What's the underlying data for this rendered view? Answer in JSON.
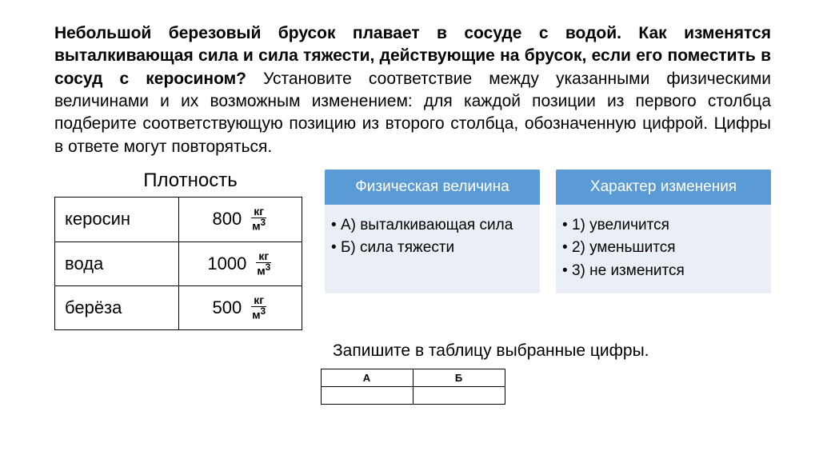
{
  "problem": {
    "bold_part": "Небольшой березовый брусок плавает в сосуде с водой. Как изменятся выталкивающая сила и сила тяжести, действующие на брусок, если его поместить в сосуд с керосином?",
    "rest_part": " Установите соответствие между указанными физическими величинами и их возможным изменением: для каждой позиции из первого столбца подберите соответствующую позицию из второго столбца, обозначенную цифрой. Цифры в ответе могут повторяться."
  },
  "density": {
    "title": "Плотность",
    "unit_top": "кг",
    "unit_bot": "м",
    "rows": [
      {
        "name": "керосин",
        "value": "800"
      },
      {
        "name": "вода",
        "value": "1000"
      },
      {
        "name": "берёза",
        "value": "500"
      }
    ]
  },
  "card_quantity": {
    "header": "Физическая величина",
    "items": [
      "А) выталкивающая сила",
      "Б) сила тяжести"
    ]
  },
  "card_change": {
    "header": "Характер изменения",
    "items": [
      "1) увеличится",
      "2) уменьшится",
      "3) не изменится"
    ]
  },
  "instruction": "Запишите в таблицу выбранные цифры.",
  "answer_headers": {
    "a": "А",
    "b": "Б"
  },
  "colors": {
    "card_header_bg": "#5b9bd5",
    "card_body_bg": "#eaeff5",
    "text": "#000000",
    "header_text": "#ffffff"
  }
}
